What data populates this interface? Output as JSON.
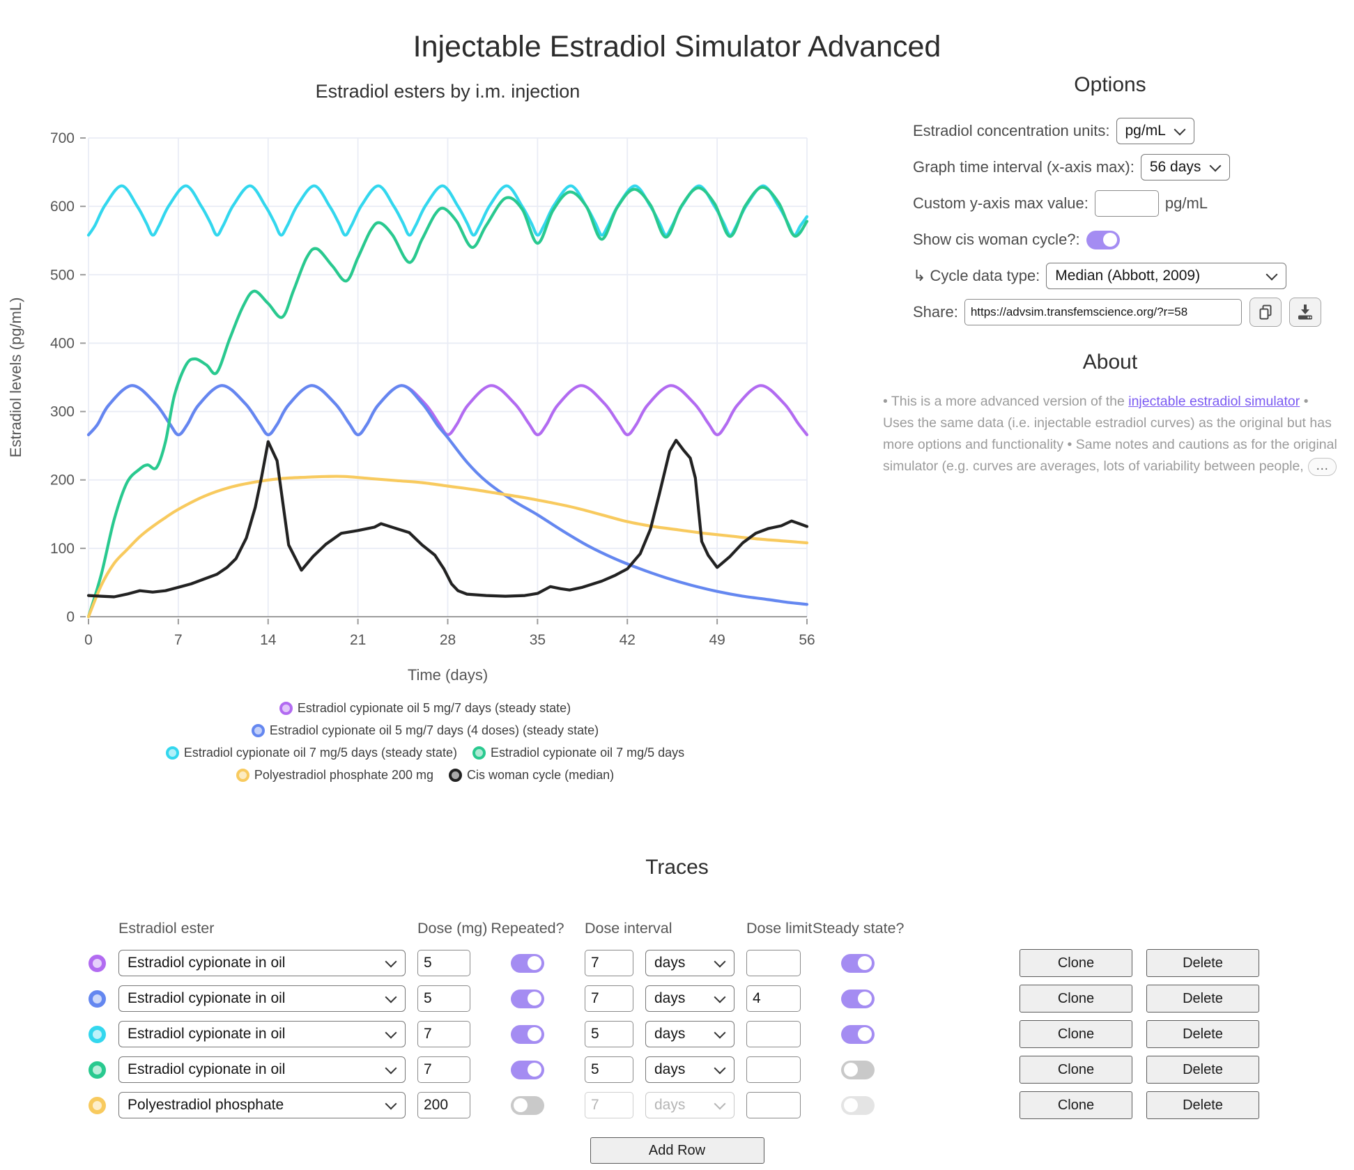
{
  "page_title": "Injectable Estradiol Simulator Advanced",
  "chart_data": {
    "type": "line",
    "title": "Estradiol esters by i.m. injection",
    "xlabel": "Time (days)",
    "ylabel": "Estradiol levels (pg/mL)",
    "xlim": [
      0,
      56
    ],
    "ylim": [
      0,
      700
    ],
    "x_ticks": [
      0,
      7,
      14,
      21,
      28,
      35,
      42,
      49,
      56
    ],
    "y_ticks": [
      0,
      100,
      200,
      300,
      400,
      500,
      600,
      700
    ],
    "grid": true,
    "legend_position": "bottom",
    "series": [
      {
        "name": "Estradiol cypionate oil 5 mg/7 days (steady state)",
        "color": "#b26bf1",
        "smooth": true,
        "model": {
          "kind": "tiled",
          "period": 7,
          "start": 0,
          "end": 56,
          "shape": [
            [
              0,
              266
            ],
            [
              0.7,
              281
            ],
            [
              1.6,
              310
            ],
            [
              3.4,
              338
            ],
            [
              5.2,
              312
            ],
            [
              6.3,
              283
            ]
          ]
        }
      },
      {
        "name": "Estradiol cypionate oil 5 mg/7 days (4 doses) (steady state)",
        "color": "#6487f0",
        "smooth": true,
        "points": [
          [
            0,
            266
          ],
          [
            0.7,
            281
          ],
          [
            1.6,
            310
          ],
          [
            3.4,
            338
          ],
          [
            5.2,
            312
          ],
          [
            6.3,
            283
          ],
          [
            7,
            266
          ],
          [
            7.7,
            281
          ],
          [
            8.6,
            310
          ],
          [
            10.4,
            338
          ],
          [
            12.2,
            312
          ],
          [
            13.3,
            283
          ],
          [
            14,
            266
          ],
          [
            14.7,
            281
          ],
          [
            15.6,
            310
          ],
          [
            17.4,
            338
          ],
          [
            19.2,
            312
          ],
          [
            20.3,
            283
          ],
          [
            21,
            266
          ],
          [
            21.7,
            281
          ],
          [
            22.6,
            310
          ],
          [
            24.4,
            338
          ],
          [
            26,
            312
          ],
          [
            27.2,
            280
          ],
          [
            28,
            262
          ],
          [
            29.5,
            226
          ],
          [
            31,
            198
          ],
          [
            33,
            171
          ],
          [
            35,
            149
          ],
          [
            37,
            125
          ],
          [
            39,
            103
          ],
          [
            41,
            85
          ],
          [
            43,
            70
          ],
          [
            45,
            57
          ],
          [
            47,
            46
          ],
          [
            49,
            37
          ],
          [
            51,
            30
          ],
          [
            53,
            25
          ],
          [
            54.5,
            21
          ],
          [
            56,
            18
          ]
        ]
      },
      {
        "name": "Estradiol cypionate oil 7 mg/5 days (steady state)",
        "color": "#33d7ee",
        "smooth": true,
        "model": {
          "kind": "tiled",
          "period": 5,
          "start": 0,
          "end": 56,
          "end_value": 585,
          "shape": [
            [
              0,
              558
            ],
            [
              0.5,
              572
            ],
            [
              1.3,
              602
            ],
            [
              2.6,
              630
            ],
            [
              3.8,
              600
            ],
            [
              4.5,
              576
            ]
          ]
        }
      },
      {
        "name": "Estradiol cypionate oil 7 mg/5 days",
        "color": "#29c98f",
        "smooth": true,
        "points": [
          [
            0,
            0
          ],
          [
            1,
            62
          ],
          [
            2,
            142
          ],
          [
            3,
            196
          ],
          [
            4,
            216
          ],
          [
            4.6,
            222
          ],
          [
            5.3,
            218
          ],
          [
            6,
            256
          ],
          [
            6.7,
            324
          ],
          [
            7.6,
            368
          ],
          [
            8.3,
            377
          ],
          [
            9.2,
            368
          ],
          [
            10,
            357
          ],
          [
            11,
            406
          ],
          [
            12,
            452
          ],
          [
            12.9,
            476
          ],
          [
            14,
            458
          ],
          [
            15.1,
            438
          ],
          [
            16,
            478
          ],
          [
            17,
            525
          ],
          [
            17.8,
            538
          ],
          [
            19,
            513
          ],
          [
            20.1,
            491
          ],
          [
            21,
            525
          ],
          [
            22,
            565
          ],
          [
            22.7,
            576
          ],
          [
            23.7,
            558
          ],
          [
            25,
            518
          ],
          [
            26,
            552
          ],
          [
            27,
            588
          ],
          [
            27.7,
            597
          ],
          [
            28.7,
            578
          ],
          [
            29.9,
            540
          ],
          [
            31,
            572
          ],
          [
            32.5,
            612
          ],
          [
            33.8,
            596
          ],
          [
            35,
            546
          ],
          [
            36.2,
            594
          ],
          [
            37.5,
            621
          ],
          [
            38.8,
            600
          ],
          [
            40,
            552
          ],
          [
            41.2,
            598
          ],
          [
            42.5,
            625
          ],
          [
            43.8,
            602
          ],
          [
            45,
            555
          ],
          [
            46.2,
            600
          ],
          [
            47.5,
            627
          ],
          [
            48.8,
            604
          ],
          [
            50,
            556
          ],
          [
            51.2,
            601
          ],
          [
            52.5,
            628
          ],
          [
            53.8,
            605
          ],
          [
            55,
            557
          ],
          [
            56,
            578
          ]
        ]
      },
      {
        "name": "Polyestradiol phosphate 200 mg",
        "color": "#f8ca5e",
        "smooth": true,
        "points": [
          [
            0,
            0
          ],
          [
            1,
            46
          ],
          [
            2,
            78
          ],
          [
            3,
            98
          ],
          [
            4,
            117
          ],
          [
            5,
            132
          ],
          [
            6,
            145
          ],
          [
            7,
            157
          ],
          [
            9,
            176
          ],
          [
            11,
            189
          ],
          [
            13,
            197
          ],
          [
            15,
            202
          ],
          [
            17,
            204
          ],
          [
            18.5,
            205
          ],
          [
            20,
            205
          ],
          [
            22,
            202
          ],
          [
            24,
            199
          ],
          [
            26,
            196
          ],
          [
            28,
            191
          ],
          [
            30,
            186
          ],
          [
            32,
            180
          ],
          [
            34,
            174
          ],
          [
            36,
            167
          ],
          [
            38,
            159
          ],
          [
            40,
            149
          ],
          [
            42,
            139
          ],
          [
            44,
            132
          ],
          [
            46,
            127
          ],
          [
            48,
            122
          ],
          [
            50,
            118
          ],
          [
            52,
            114
          ],
          [
            54,
            111
          ],
          [
            56,
            108
          ]
        ]
      },
      {
        "name": "Cis woman cycle (median)",
        "color": "#222222",
        "smooth": false,
        "points": [
          [
            0,
            31
          ],
          [
            1,
            30
          ],
          [
            2,
            29
          ],
          [
            3,
            33
          ],
          [
            4,
            38
          ],
          [
            5,
            36
          ],
          [
            6,
            38
          ],
          [
            7,
            43
          ],
          [
            8,
            48
          ],
          [
            9,
            55
          ],
          [
            10,
            62
          ],
          [
            10.8,
            72
          ],
          [
            11.5,
            85
          ],
          [
            12.3,
            115
          ],
          [
            13,
            160
          ],
          [
            13.5,
            205
          ],
          [
            14,
            256
          ],
          [
            14.7,
            228
          ],
          [
            15.6,
            105
          ],
          [
            16.6,
            68
          ],
          [
            17.5,
            88
          ],
          [
            18.5,
            106
          ],
          [
            19.7,
            122
          ],
          [
            21,
            126
          ],
          [
            22.3,
            131
          ],
          [
            22.8,
            136
          ],
          [
            23.8,
            130
          ],
          [
            25,
            123
          ],
          [
            26,
            105
          ],
          [
            27,
            90
          ],
          [
            27.7,
            70
          ],
          [
            28.3,
            48
          ],
          [
            28.8,
            38
          ],
          [
            29.5,
            33
          ],
          [
            31,
            31
          ],
          [
            32.5,
            30
          ],
          [
            34,
            31
          ],
          [
            35,
            34
          ],
          [
            36,
            44
          ],
          [
            36.8,
            41
          ],
          [
            37.5,
            39
          ],
          [
            38.5,
            43
          ],
          [
            40,
            52
          ],
          [
            41,
            60
          ],
          [
            42,
            70
          ],
          [
            43,
            92
          ],
          [
            43.8,
            128
          ],
          [
            44.5,
            180
          ],
          [
            45.3,
            242
          ],
          [
            45.8,
            258
          ],
          [
            46.4,
            243
          ],
          [
            46.9,
            232
          ],
          [
            47.3,
            203
          ],
          [
            47.8,
            110
          ],
          [
            48.3,
            90
          ],
          [
            49,
            72
          ],
          [
            50,
            88
          ],
          [
            51,
            108
          ],
          [
            52,
            122
          ],
          [
            53,
            129
          ],
          [
            54,
            133
          ],
          [
            54.8,
            140
          ],
          [
            55.4,
            136
          ],
          [
            56,
            132
          ]
        ]
      }
    ]
  },
  "options": {
    "title": "Options",
    "units_label": "Estradiol concentration units:",
    "units_value": "pg/mL",
    "interval_label": "Graph time interval (x-axis max):",
    "interval_value": "56 days",
    "ymax_label": "Custom y-axis max value:",
    "ymax_value": "",
    "ymax_suffix": "pg/mL",
    "cycle_label": "Show cis woman cycle?:",
    "cycle_on": true,
    "cycle_type_label": "↳ Cycle data type:",
    "cycle_type_value": "Median (Abbott, 2009)",
    "share_label": "Share:",
    "share_url": "https://advsim.transfemscience.org/?r=58"
  },
  "about": {
    "title": "About",
    "text_before_link": "• This is a more advanced version of the ",
    "link_text": "injectable estradiol simulator",
    "text_after_link": " • Uses the same data (i.e. injectable estradiol curves) as the original but has more options and functionality • Same notes and cautions as for the original simulator (e.g. curves are averages, lots of variability between people,",
    "ellipsis": "…"
  },
  "traces": {
    "title": "Traces",
    "headers": {
      "ester": "Estradiol ester",
      "dose": "Dose (mg)",
      "repeated": "Repeated?",
      "interval": "Dose interval",
      "limit": "Dose limit",
      "steady": "Steady state?"
    },
    "clone_label": "Clone",
    "delete_label": "Delete",
    "add_row_label": "Add Row",
    "rows": [
      {
        "color": "#b26bf1",
        "ester": "Estradiol cypionate in oil",
        "dose": "5",
        "repeated": true,
        "interval": "7",
        "interval_unit": "days",
        "dose_limit": "",
        "steady": true,
        "interval_enabled": true,
        "steady_enabled": true
      },
      {
        "color": "#6487f0",
        "ester": "Estradiol cypionate in oil",
        "dose": "5",
        "repeated": true,
        "interval": "7",
        "interval_unit": "days",
        "dose_limit": "4",
        "steady": true,
        "interval_enabled": true,
        "steady_enabled": true
      },
      {
        "color": "#33d7ee",
        "ester": "Estradiol cypionate in oil",
        "dose": "7",
        "repeated": true,
        "interval": "5",
        "interval_unit": "days",
        "dose_limit": "",
        "steady": true,
        "interval_enabled": true,
        "steady_enabled": true
      },
      {
        "color": "#29c98f",
        "ester": "Estradiol cypionate in oil",
        "dose": "7",
        "repeated": true,
        "interval": "5",
        "interval_unit": "days",
        "dose_limit": "",
        "steady": false,
        "interval_enabled": true,
        "steady_enabled": true
      },
      {
        "color": "#f8ca5e",
        "ester": "Polyestradiol phosphate",
        "dose": "200",
        "repeated": false,
        "interval": "7",
        "interval_unit": "days",
        "dose_limit": "",
        "steady": false,
        "interval_enabled": false,
        "steady_enabled": false
      }
    ]
  }
}
